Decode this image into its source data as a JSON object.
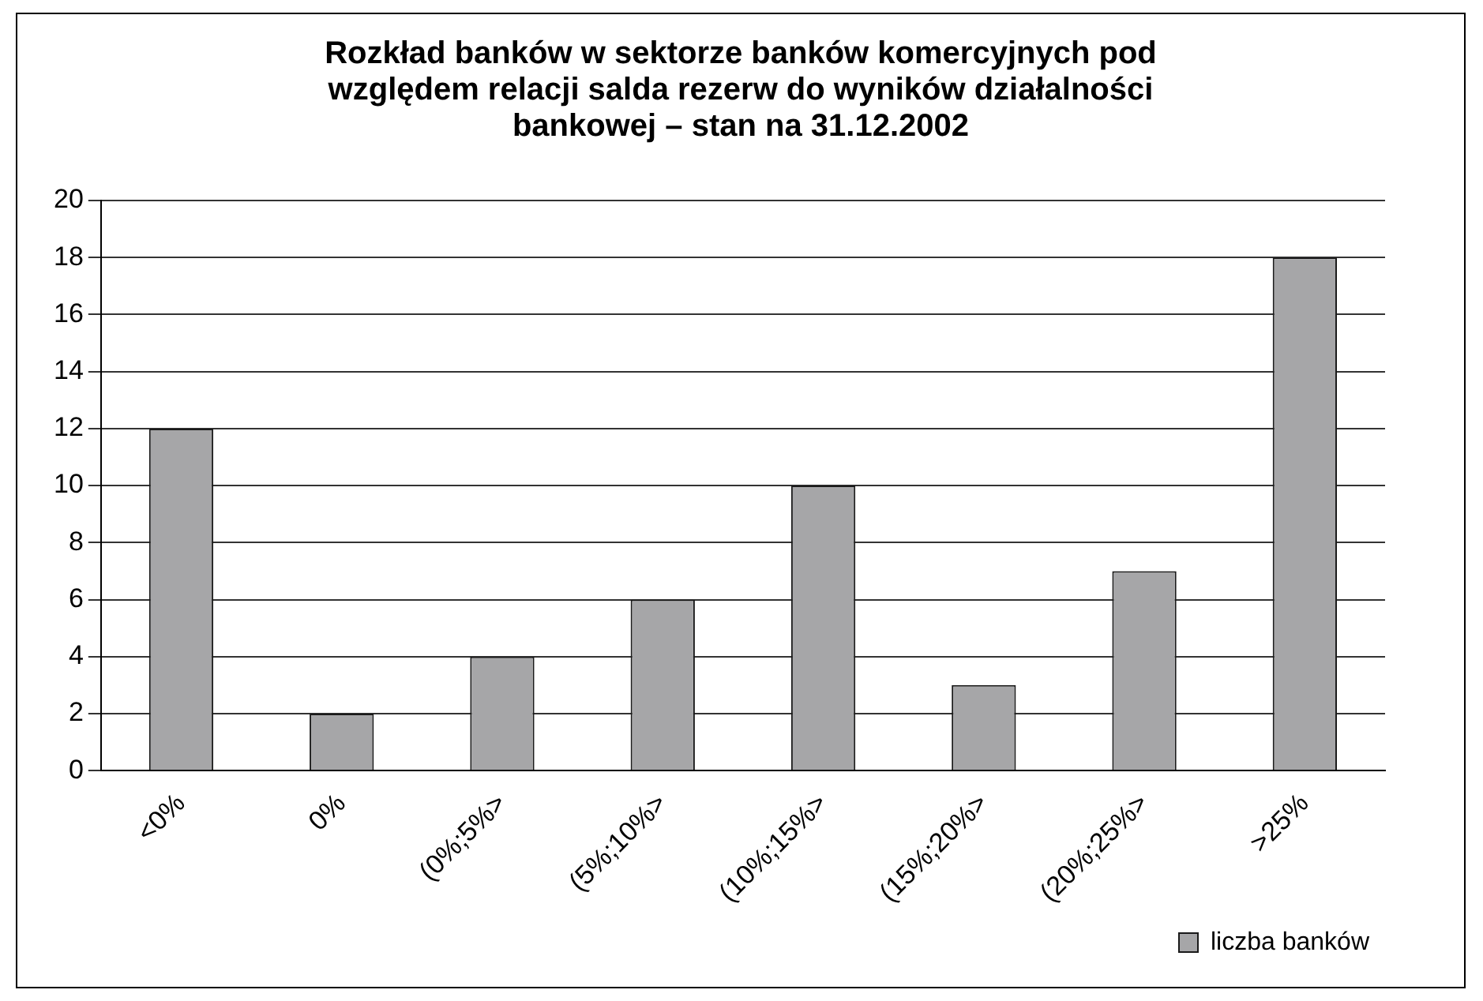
{
  "chart_data": {
    "type": "bar",
    "title": "Rozkład banków w sektorze banków komercyjnych pod względem relacji salda rezerw do wyników działalności bankowej – stan na 31.12.2002",
    "categories": [
      "<0%",
      "0%",
      "(0%;5%>",
      "(5%;10%>",
      "(10%;15%>",
      "(15%;20%>",
      "(20%;25%>",
      ">25%"
    ],
    "series": [
      {
        "name": "liczba banków",
        "color": "#a6a6a8",
        "values": [
          12,
          2,
          4,
          6,
          10,
          3,
          7,
          18
        ]
      }
    ],
    "ylim": [
      0,
      20
    ],
    "yticks": [
      0,
      2,
      4,
      6,
      8,
      10,
      12,
      14,
      16,
      18,
      20
    ],
    "grid": "y",
    "legend": "bottom right"
  }
}
